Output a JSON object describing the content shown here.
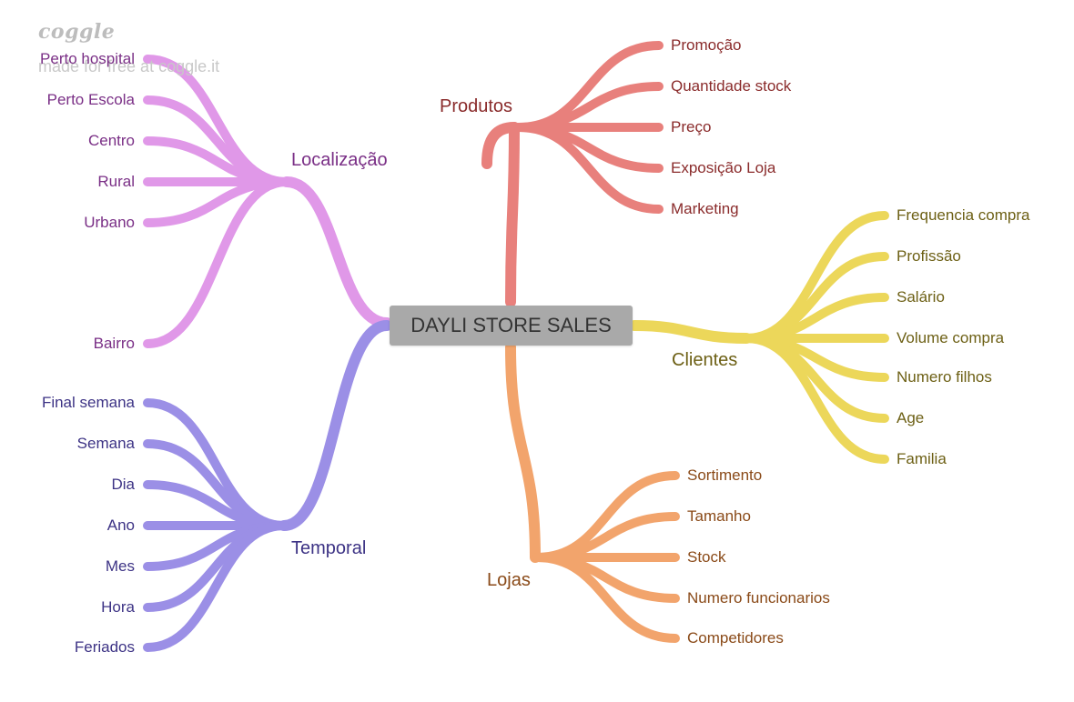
{
  "watermark": {
    "logo": "coggle",
    "subtitle": "made for free at coggle.it"
  },
  "root": {
    "label": "DAYLI STORE SALES",
    "color": "#a9a9a9"
  },
  "branches": {
    "localizacao": {
      "label": "Localização",
      "color": "#e098e8",
      "text_color": "#7a2f86",
      "children": [
        "Perto hospital",
        "Perto Escola",
        "Centro",
        "Rural",
        "Urbano",
        "Bairro"
      ]
    },
    "temporal": {
      "label": "Temporal",
      "color": "#9b8fe6",
      "text_color": "#3d3385",
      "children": [
        "Final semana",
        "Semana",
        "Dia",
        "Ano",
        "Mes",
        "Hora",
        "Feriados"
      ]
    },
    "produtos": {
      "label": "Produtos",
      "color": "#e8807c",
      "text_color": "#8a2b2b",
      "children": [
        "Promoção",
        "Quantidade stock",
        "Preço",
        "Exposição Loja",
        "Marketing"
      ]
    },
    "clientes": {
      "label": "Clientes",
      "color": "#ecd75a",
      "text_color": "#6d6015",
      "children": [
        "Frequencia compra",
        "Profissão",
        "Salário",
        "Volume compra",
        "Numero filhos",
        "Age",
        "Familia"
      ]
    },
    "lojas": {
      "label": "Lojas",
      "color": "#f2a46c",
      "text_color": "#8a4a18",
      "children": [
        "Sortimento",
        "Tamanho",
        "Stock",
        "Numero funcionarios",
        "Competidores"
      ]
    }
  }
}
